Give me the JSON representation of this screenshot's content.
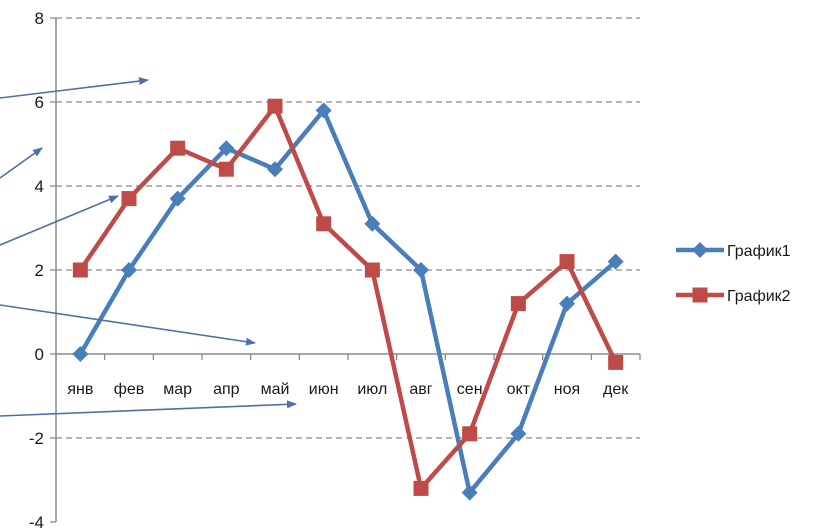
{
  "chart_data": {
    "type": "line",
    "title": "",
    "xlabel": "",
    "ylabel": "",
    "categories": [
      "янв",
      "фев",
      "мар",
      "апр",
      "май",
      "июн",
      "июл",
      "авг",
      "сен",
      "окт",
      "ноя",
      "дек"
    ],
    "y_ticks": [
      "8",
      "6",
      "4",
      "2",
      "0",
      "-2",
      "-4"
    ],
    "ylim": [
      -4,
      8
    ],
    "grid": "horizontal-dashed",
    "legend_position": "right",
    "series": [
      {
        "name": "График1",
        "color": "#4a7ebb",
        "marker": "diamond",
        "values": [
          0,
          2,
          3.7,
          4.9,
          4.4,
          5.8,
          3.1,
          2,
          -3.3,
          -1.9,
          1.2,
          2.2
        ]
      },
      {
        "name": "График2",
        "color": "#be4b48",
        "marker": "square",
        "values": [
          2,
          3.7,
          4.9,
          4.4,
          5.9,
          3.1,
          2,
          -3.2,
          -1.9,
          1.2,
          2.2,
          -0.2
        ]
      }
    ],
    "annotation_arrow_color": "#4f6fa8"
  }
}
